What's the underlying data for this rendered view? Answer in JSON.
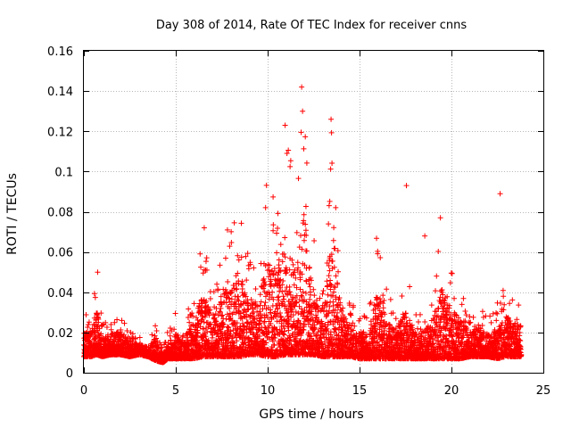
{
  "chart_data": {
    "type": "scatter",
    "title": "Day 308 of 2014, Rate Of TEC Index for receiver cnns",
    "xlabel": "GPS time / hours",
    "ylabel": "ROTI / TECUs",
    "xlim": [
      0,
      25
    ],
    "ylim": [
      0,
      0.16
    ],
    "xticks": [
      0,
      5,
      10,
      15,
      20,
      25
    ],
    "xtick_labels": [
      "0",
      "5",
      "10",
      "15",
      "20",
      "25"
    ],
    "yticks": [
      0,
      0.02,
      0.04,
      0.06,
      0.08,
      0.1,
      0.12,
      0.14,
      0.16
    ],
    "ytick_labels": [
      "0",
      "0.02",
      "0.04",
      "0.06",
      "0.08",
      "0.1",
      "0.12",
      "0.14",
      "0.16"
    ],
    "grid": true,
    "marker": "+",
    "marker_color": "#ff0000",
    "notable_points": [
      {
        "x": 11.85,
        "y": 0.142
      },
      {
        "x": 11.9,
        "y": 0.13
      },
      {
        "x": 13.45,
        "y": 0.126
      },
      {
        "x": 10.95,
        "y": 0.123
      },
      {
        "x": 17.55,
        "y": 0.093
      },
      {
        "x": 22.65,
        "y": 0.089
      },
      {
        "x": 19.4,
        "y": 0.077
      },
      {
        "x": 18.55,
        "y": 0.068
      },
      {
        "x": 6.55,
        "y": 0.072
      },
      {
        "x": 0.75,
        "y": 0.05
      }
    ],
    "series": [
      {
        "name": "ROTI",
        "envelope": {
          "x": [
            0,
            0.4,
            0.7,
            1.0,
            1.5,
            2.0,
            2.5,
            3.0,
            3.5,
            3.9,
            4.3,
            4.6,
            5.0,
            5.5,
            6.0,
            6.5,
            7.0,
            7.5,
            8.0,
            8.5,
            9.0,
            9.5,
            10.0,
            10.5,
            11.0,
            11.5,
            12.0,
            12.5,
            13.0,
            13.5,
            14.0,
            14.5,
            15.0,
            15.5,
            16.0,
            16.5,
            17.0,
            17.5,
            18.0,
            18.5,
            19.0,
            19.5,
            20.0,
            20.5,
            21.0,
            21.5,
            22.0,
            22.5,
            23.0,
            23.5,
            23.8
          ],
          "low": [
            0.008,
            0.008,
            0.009,
            0.008,
            0.009,
            0.009,
            0.008,
            0.009,
            0.008,
            0.006,
            0.005,
            0.007,
            0.007,
            0.007,
            0.007,
            0.008,
            0.008,
            0.008,
            0.008,
            0.008,
            0.009,
            0.009,
            0.008,
            0.008,
            0.009,
            0.009,
            0.009,
            0.009,
            0.008,
            0.008,
            0.008,
            0.008,
            0.007,
            0.007,
            0.007,
            0.007,
            0.007,
            0.007,
            0.007,
            0.007,
            0.007,
            0.007,
            0.007,
            0.007,
            0.008,
            0.008,
            0.008,
            0.007,
            0.008,
            0.008,
            0.008
          ],
          "high": [
            0.03,
            0.032,
            0.05,
            0.025,
            0.028,
            0.03,
            0.022,
            0.018,
            0.017,
            0.026,
            0.012,
            0.022,
            0.03,
            0.028,
            0.04,
            0.07,
            0.04,
            0.06,
            0.08,
            0.085,
            0.055,
            0.06,
            0.1,
            0.08,
            0.123,
            0.09,
            0.142,
            0.07,
            0.04,
            0.126,
            0.05,
            0.035,
            0.03,
            0.03,
            0.074,
            0.04,
            0.035,
            0.053,
            0.032,
            0.03,
            0.045,
            0.077,
            0.05,
            0.045,
            0.03,
            0.035,
            0.028,
            0.035,
            0.045,
            0.04,
            0.037
          ]
        }
      }
    ]
  }
}
